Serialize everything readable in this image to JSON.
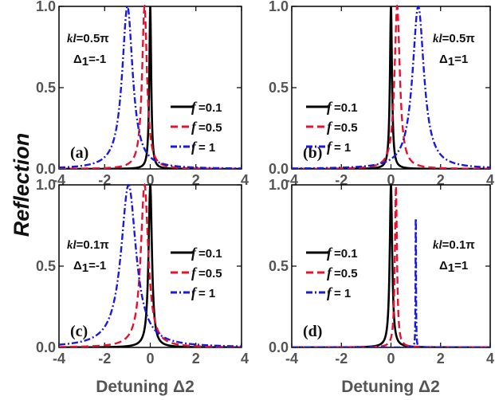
{
  "chart_data": [
    {
      "panel": "(a)",
      "type": "line",
      "kl_label": "kl=0.5π",
      "delta1_label": "Δ1=-1",
      "xlim": [
        -4,
        4
      ],
      "ylim": [
        0,
        1.0
      ],
      "xticks": [
        "-4",
        "-2",
        "0",
        "2",
        "4"
      ],
      "yticks": [
        "0.0",
        "0.5",
        "1.0"
      ],
      "legend_position": "center-right",
      "series": [
        {
          "name": "f =0.1",
          "color": "#000000",
          "dash": "solid",
          "center": 0.0,
          "width": 0.05,
          "peak": 1.0
        },
        {
          "name": "f =0.5",
          "color": "#e8112d",
          "dash": "dash",
          "center": -0.25,
          "width": 0.13,
          "peak": 1.0
        },
        {
          "name": "f = 1",
          "color": "#1a1adc",
          "dash": "dashdot",
          "center": -1.0,
          "width": 0.28,
          "peak": 1.0
        }
      ]
    },
    {
      "panel": "(b)",
      "type": "line",
      "kl_label": "kl=0.5π",
      "delta1_label": "Δ1=1",
      "xlim": [
        -4,
        4
      ],
      "ylim": [
        0,
        1.0
      ],
      "xticks": [
        "-4",
        "-2",
        "0",
        "2",
        "4"
      ],
      "yticks": [
        "0.0",
        "0.5",
        "1.0"
      ],
      "legend_position": "center-left",
      "series": [
        {
          "name": "f =0.1",
          "color": "#000000",
          "dash": "solid",
          "center": 0.0,
          "width": 0.05,
          "peak": 1.0
        },
        {
          "name": "f =0.5",
          "color": "#e8112d",
          "dash": "dash",
          "center": 0.25,
          "width": 0.13,
          "peak": 1.0
        },
        {
          "name": "f = 1",
          "color": "#1a1adc",
          "dash": "dashdot",
          "center": 1.1,
          "width": 0.28,
          "peak": 1.0
        }
      ]
    },
    {
      "panel": "(c)",
      "type": "line",
      "kl_label": "kl=0.1π",
      "delta1_label": "Δ1=-1",
      "xlim": [
        -4,
        4
      ],
      "ylim": [
        0,
        1.0
      ],
      "xticks": [
        "-4",
        "-2",
        "0",
        "2",
        "4"
      ],
      "yticks": [
        "0.0",
        "0.5",
        "1.0"
      ],
      "legend_position": "center-right",
      "series": [
        {
          "name": "f =0.1",
          "color": "#000000",
          "dash": "solid",
          "center": 0.0,
          "width": 0.09,
          "peak": 1.0
        },
        {
          "name": "f =0.5",
          "color": "#e8112d",
          "dash": "dash",
          "center": -0.25,
          "width": 0.2,
          "peak": 1.0
        },
        {
          "name": "f = 1",
          "color": "#1a1adc",
          "dash": "dashdot",
          "center": -0.95,
          "width": 0.4,
          "peak": 1.0
        }
      ]
    },
    {
      "panel": "(d)",
      "type": "line",
      "kl_label": "kl=0.1π",
      "delta1_label": "Δ1=1",
      "xlim": [
        -4,
        4
      ],
      "ylim": [
        0,
        1.0
      ],
      "xticks": [
        "-4",
        "-2",
        "0",
        "2",
        "4"
      ],
      "yticks": [
        "0.0",
        "0.5",
        "1.0"
      ],
      "legend_position": "center-left",
      "series": [
        {
          "name": "f =0.1",
          "color": "#000000",
          "dash": "solid",
          "center": 0.0,
          "width": 0.06,
          "peak": 1.0
        },
        {
          "name": "f =0.5",
          "color": "#e8112d",
          "dash": "dash",
          "center": 0.2,
          "width": 0.05,
          "peak": 1.0
        },
        {
          "name": "f = 1",
          "color": "#1a1adc",
          "dash": "dashdot",
          "center": 1.0,
          "width": 0.01,
          "peak": 0.95
        }
      ]
    }
  ],
  "ylabel": "Reflection",
  "xlabel_left": "Detuning Δ2",
  "xlabel_right": "Detuning Δ2"
}
